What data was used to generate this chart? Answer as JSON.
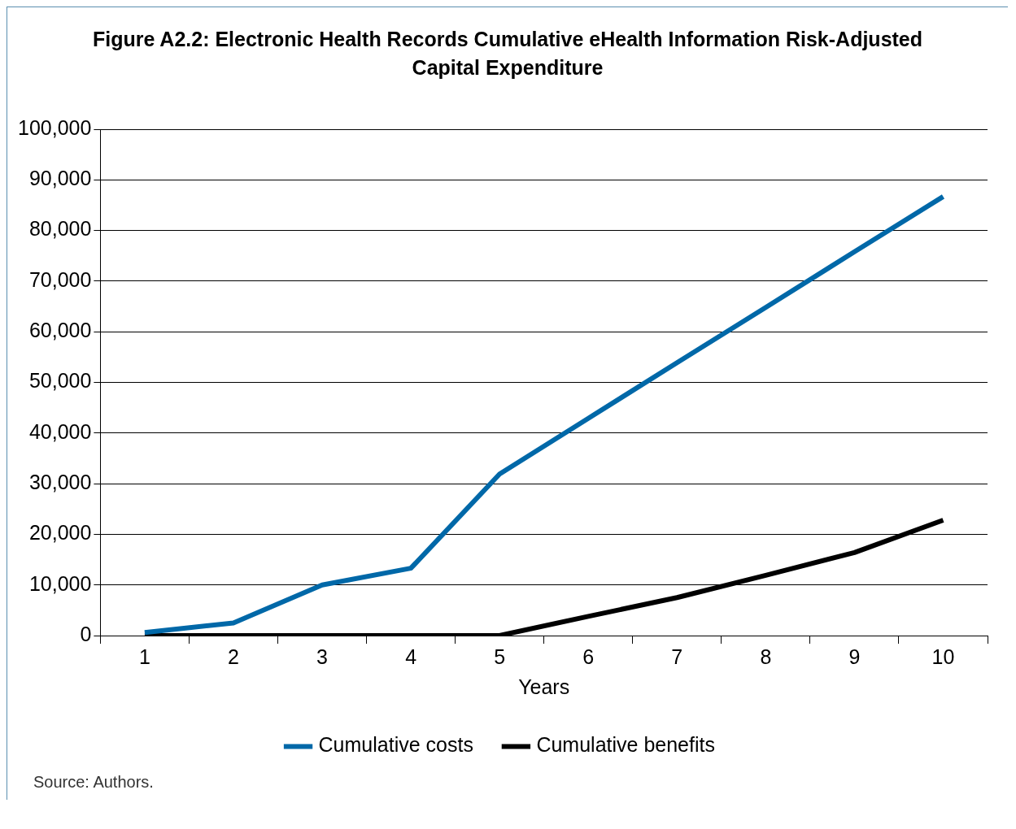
{
  "chart_data": {
    "type": "line",
    "title": "Figure A2.2: Electronic Health Records Cumulative eHealth Information Risk-Adjusted Capital Expenditure",
    "xlabel": "Years",
    "categories": [
      "1",
      "2",
      "3",
      "4",
      "5",
      "6",
      "7",
      "8",
      "9",
      "10"
    ],
    "series": [
      {
        "name": "Cumulative costs",
        "color": "#0068a8",
        "values": [
          600,
          2500,
          10000,
          13300,
          31900,
          42900,
          53900,
          64800,
          75800,
          86700
        ]
      },
      {
        "name": "Cumulative benefits",
        "color": "#000000",
        "values": [
          0,
          0,
          0,
          0,
          0,
          3800,
          7500,
          11900,
          16400,
          22800
        ]
      }
    ],
    "ylim": [
      0,
      100000
    ],
    "yticks": [
      0,
      {
        "value": 10000,
        "label": "10,000"
      },
      {
        "value": 20000,
        "label": "20,000"
      },
      {
        "value": 30000,
        "label": "30,000"
      },
      {
        "value": 40000,
        "label": "40,000"
      },
      {
        "value": 50000,
        "label": "50,000"
      },
      {
        "value": 60000,
        "label": "60,000"
      },
      {
        "value": 70000,
        "label": "70,000"
      },
      {
        "value": 80000,
        "label": "80,000"
      },
      {
        "value": 90000,
        "label": "90,000"
      },
      {
        "value": 100000,
        "label": "100,000"
      }
    ],
    "grid": "y",
    "legend": "bottom",
    "marker": "none",
    "line_style": "solid",
    "annotations": [
      "Source: Authors."
    ]
  }
}
